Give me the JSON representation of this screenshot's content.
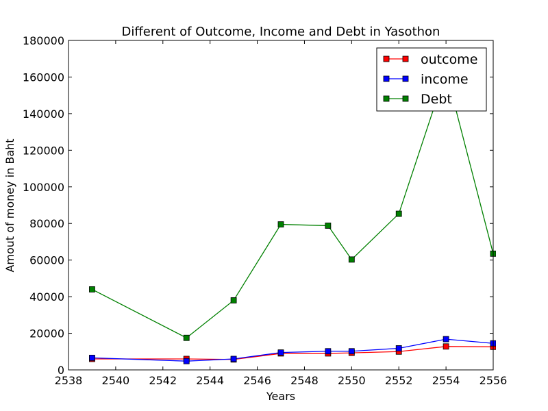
{
  "chart_data": {
    "type": "line",
    "title": "Different of Outcome, Income and Debt in Yasothon",
    "xlabel": "Years",
    "ylabel": "Amout of money in Baht",
    "xlim": [
      2538,
      2556
    ],
    "ylim": [
      0,
      180000
    ],
    "xticks": [
      "2538",
      "2540",
      "2542",
      "2544",
      "2546",
      "2548",
      "2550",
      "2552",
      "2554",
      "2556"
    ],
    "yticks": [
      "0",
      "20000",
      "40000",
      "60000",
      "80000",
      "100000",
      "120000",
      "140000",
      "160000",
      "180000"
    ],
    "grid": false,
    "legend_position": "top-right",
    "x": [
      2539,
      2543,
      2545,
      2547,
      2549,
      2550,
      2552,
      2554,
      2556
    ],
    "series": [
      {
        "name": "outcome",
        "color": "#ff0000",
        "marker": "square",
        "values": [
          6000,
          6000,
          5700,
          9000,
          9000,
          9300,
          10000,
          12800,
          12600
        ]
      },
      {
        "name": "income",
        "color": "#0000ff",
        "marker": "square",
        "values": [
          6600,
          4800,
          6000,
          9500,
          10200,
          10200,
          11800,
          16800,
          14500
        ]
      },
      {
        "name": "Debt",
        "color": "#008000",
        "marker": "square",
        "values": [
          44000,
          17500,
          38000,
          79500,
          78800,
          60300,
          85300,
          163000,
          63500
        ]
      }
    ]
  }
}
